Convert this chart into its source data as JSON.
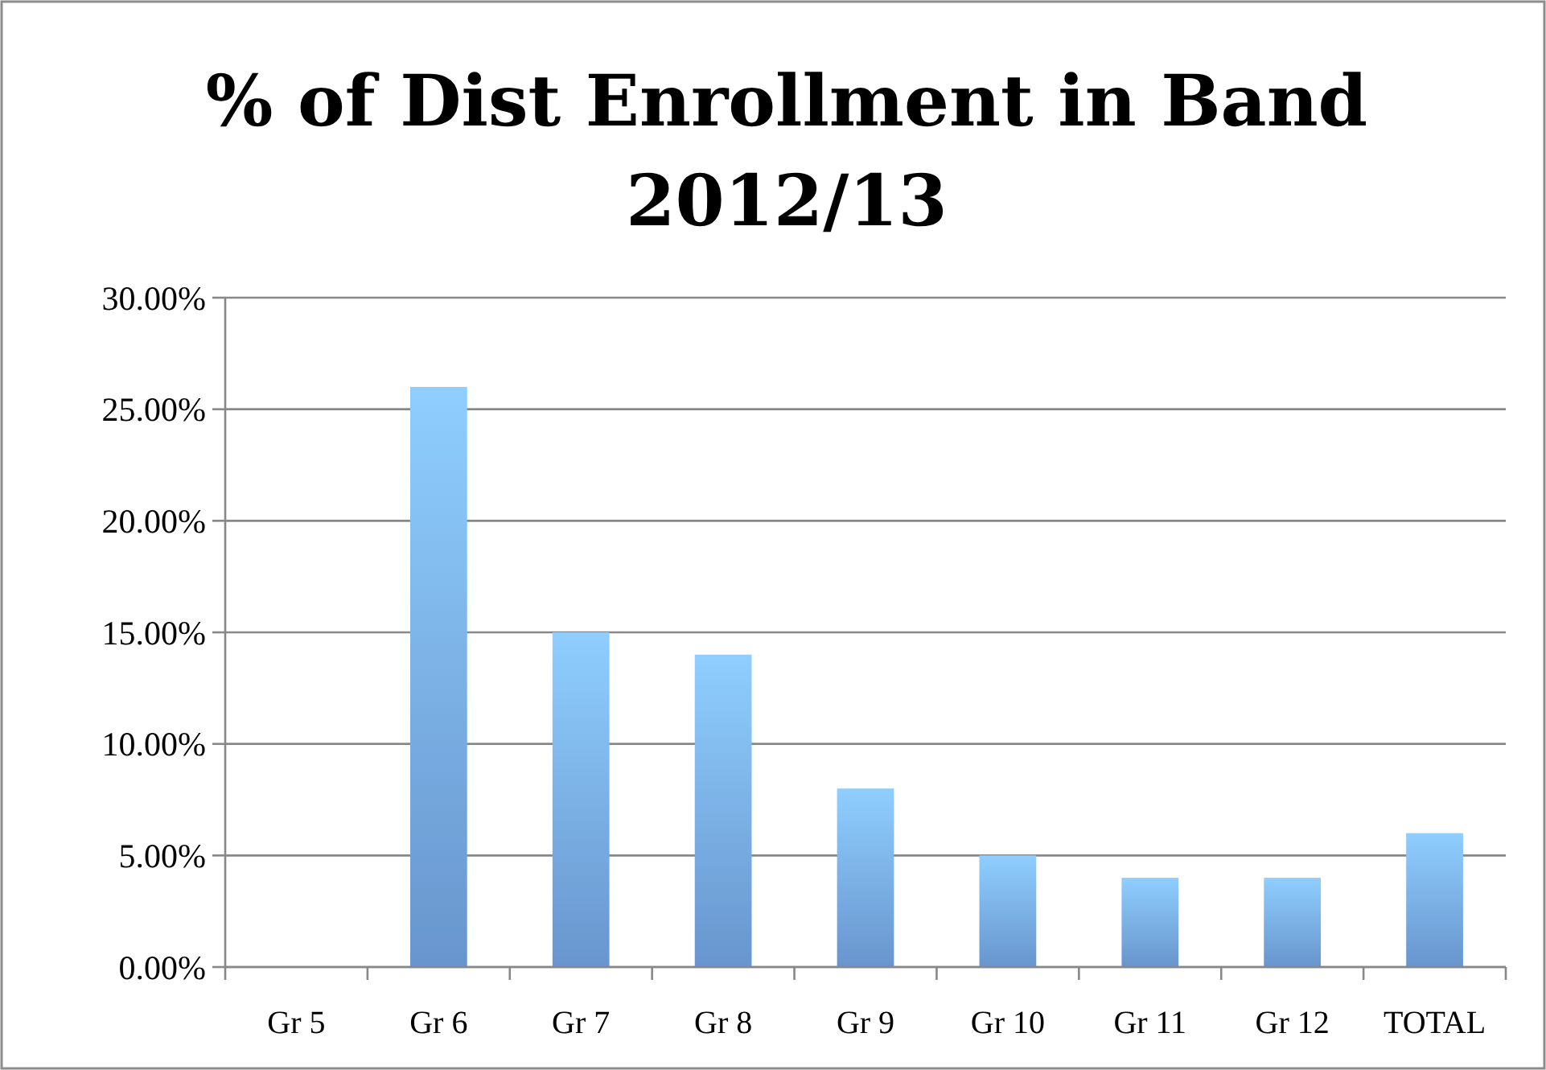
{
  "chart_data": {
    "type": "bar",
    "title": "% of Dist Enrollment in Band\n2012/13",
    "categories": [
      "Gr 5",
      "Gr 6",
      "Gr 7",
      "Gr 8",
      "Gr 9",
      "Gr 10",
      "Gr 11",
      "Gr 12",
      "TOTAL"
    ],
    "values": [
      0,
      26,
      15,
      14,
      8,
      5,
      4,
      4,
      6
    ],
    "color": "#78acec",
    "ylim": [
      0,
      30
    ],
    "yticks": [
      {
        "value": 0,
        "label": "0.00%"
      },
      {
        "value": 5,
        "label": "5.00%"
      },
      {
        "value": 10,
        "label": "10.00%"
      },
      {
        "value": 15,
        "label": "15.00%"
      },
      {
        "value": 20,
        "label": "20.00%"
      },
      {
        "value": 25,
        "label": "25.00%"
      },
      {
        "value": 30,
        "label": "30.00%"
      }
    ],
    "grid": "y"
  }
}
